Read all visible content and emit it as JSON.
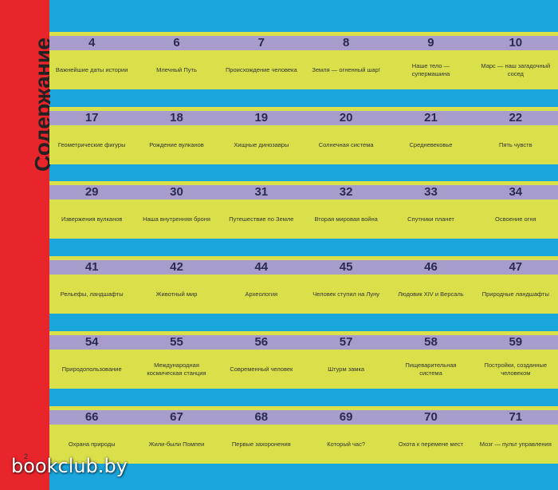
{
  "sidebar": {
    "title": "Содержание",
    "page_number": "2"
  },
  "watermark": "bookclub.by",
  "rows": [
    {
      "items": [
        {
          "page": "4",
          "title": "Важнейшие даты истории"
        },
        {
          "page": "6",
          "title": "Млечный Путь"
        },
        {
          "page": "7",
          "title": "Происхождение человека"
        },
        {
          "page": "8",
          "title": "Земля — огненный шар!"
        },
        {
          "page": "9",
          "title": "Наше тело — супермашина"
        },
        {
          "page": "10",
          "title": "Марс — наш загадочный сосед"
        }
      ]
    },
    {
      "items": [
        {
          "page": "17",
          "title": "Геометрические фигуры"
        },
        {
          "page": "18",
          "title": "Рождение вулканов"
        },
        {
          "page": "19",
          "title": "Хищные динозавры"
        },
        {
          "page": "20",
          "title": "Солнечная система"
        },
        {
          "page": "21",
          "title": "Средневековье"
        },
        {
          "page": "22",
          "title": "Пять чувств"
        }
      ]
    },
    {
      "items": [
        {
          "page": "29",
          "title": "Извержения вулканов"
        },
        {
          "page": "30",
          "title": "Наша внутренняя броня"
        },
        {
          "page": "31",
          "title": "Путешествие по Земле"
        },
        {
          "page": "32",
          "title": "Вторая мировая война"
        },
        {
          "page": "33",
          "title": "Спутники планет"
        },
        {
          "page": "34",
          "title": "Освоение огня"
        }
      ]
    },
    {
      "items": [
        {
          "page": "41",
          "title": "Рельефы, ландшафты"
        },
        {
          "page": "42",
          "title": "Животный мир"
        },
        {
          "page": "44",
          "title": "Археология"
        },
        {
          "page": "45",
          "title": "Человек ступил на Луну"
        },
        {
          "page": "46",
          "title": "Людовик XIV и Версаль"
        },
        {
          "page": "47",
          "title": "Природные ландшафты"
        }
      ]
    },
    {
      "items": [
        {
          "page": "54",
          "title": "Природопользование"
        },
        {
          "page": "55",
          "title": "Международная космическая станция"
        },
        {
          "page": "56",
          "title": "Современный человек"
        },
        {
          "page": "57",
          "title": "Штурм замка"
        },
        {
          "page": "58",
          "title": "Пищеварительная система"
        },
        {
          "page": "59",
          "title": "Постройки, созданные человеком"
        }
      ]
    },
    {
      "items": [
        {
          "page": "66",
          "title": "Охрана природы"
        },
        {
          "page": "67",
          "title": "Жили-были Помпеи"
        },
        {
          "page": "68",
          "title": "Первые захоронения"
        },
        {
          "page": "69",
          "title": "Который час?"
        },
        {
          "page": "70",
          "title": "Охота к перемене мест"
        },
        {
          "page": "71",
          "title": "Мозг — пульт управления"
        }
      ]
    }
  ]
}
